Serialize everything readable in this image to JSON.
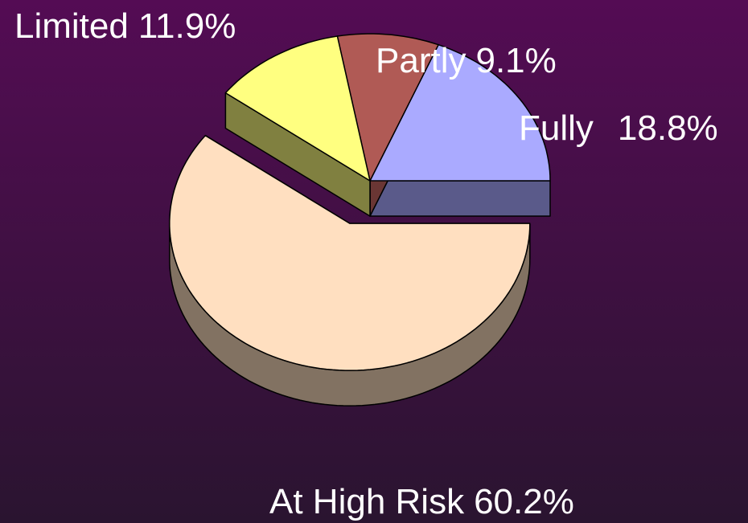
{
  "chart_data": {
    "type": "pie",
    "categories": [
      "Limited",
      "Partly",
      "Fully",
      "At High Risk"
    ],
    "values": [
      11.9,
      9.1,
      18.8,
      60.2
    ],
    "value_labels": [
      "11.9%",
      "9.1%",
      "18.8%",
      "60.2%"
    ],
    "colors": [
      "#ffff80",
      "#b05a55",
      "#aaaaff",
      "#ffdfc0"
    ],
    "side_colors": [
      "#808040",
      "#6a3634",
      "#5a5a8a",
      "#827262"
    ]
  }
}
